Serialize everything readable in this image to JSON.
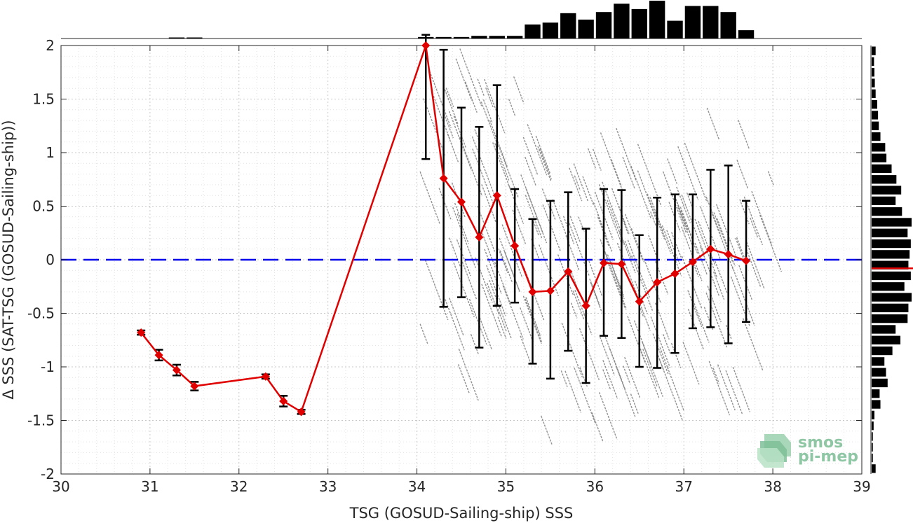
{
  "chart_data": {
    "type": "scatter",
    "xlabel": "TSG (GOSUD-Sailing-ship) SSS",
    "ylabel": "Δ SSS (SAT-TSG (GOSUD-Sailing-ship))",
    "xlim": [
      30,
      39
    ],
    "ylim": [
      -2,
      2
    ],
    "xticks": [
      "30",
      "31",
      "32",
      "33",
      "34",
      "35",
      "36",
      "37",
      "38",
      "39"
    ],
    "yticks": [
      "-2",
      "-1.5",
      "-1",
      "-0.5",
      "0",
      "0.5",
      "1",
      "1.5",
      "2"
    ],
    "grid": true,
    "zero_line": {
      "y": 0,
      "color": "#0000ee",
      "style": "dashed"
    },
    "mean_series": {
      "color": "#e00000",
      "marker": "diamond",
      "points": [
        {
          "x": 30.9,
          "y": -0.68,
          "lo": -0.7,
          "hi": -0.66
        },
        {
          "x": 31.1,
          "y": -0.89,
          "lo": -0.94,
          "hi": -0.84
        },
        {
          "x": 31.3,
          "y": -1.03,
          "lo": -1.08,
          "hi": -0.98
        },
        {
          "x": 31.5,
          "y": -1.18,
          "lo": -1.22,
          "hi": -1.14
        },
        {
          "x": 32.3,
          "y": -1.09,
          "lo": -1.11,
          "hi": -1.07
        },
        {
          "x": 32.5,
          "y": -1.32,
          "lo": -1.37,
          "hi": -1.27
        },
        {
          "x": 32.7,
          "y": -1.42,
          "lo": -1.44,
          "hi": -1.4
        },
        {
          "x": 34.1,
          "y": 2.05,
          "lo": 0.94,
          "hi": 2.1
        },
        {
          "x": 34.3,
          "y": 0.76,
          "lo": -0.44,
          "hi": 1.96
        },
        {
          "x": 34.5,
          "y": 0.54,
          "lo": -0.35,
          "hi": 1.42
        },
        {
          "x": 34.7,
          "y": 0.21,
          "lo": -0.82,
          "hi": 1.24
        },
        {
          "x": 34.9,
          "y": 0.6,
          "lo": -0.43,
          "hi": 1.63
        },
        {
          "x": 35.1,
          "y": 0.13,
          "lo": -0.4,
          "hi": 0.66
        },
        {
          "x": 35.3,
          "y": -0.3,
          "lo": -0.97,
          "hi": 0.38
        },
        {
          "x": 35.5,
          "y": -0.29,
          "lo": -1.11,
          "hi": 0.55
        },
        {
          "x": 35.7,
          "y": -0.11,
          "lo": -0.85,
          "hi": 0.63
        },
        {
          "x": 35.9,
          "y": -0.43,
          "lo": -1.15,
          "hi": 0.29
        },
        {
          "x": 36.1,
          "y": -0.03,
          "lo": -0.71,
          "hi": 0.66
        },
        {
          "x": 36.3,
          "y": -0.04,
          "lo": -0.73,
          "hi": 0.65
        },
        {
          "x": 36.5,
          "y": -0.39,
          "lo": -1.0,
          "hi": 0.23
        },
        {
          "x": 36.7,
          "y": -0.21,
          "lo": -1.01,
          "hi": 0.58
        },
        {
          "x": 36.9,
          "y": -0.13,
          "lo": -0.87,
          "hi": 0.61
        },
        {
          "x": 37.1,
          "y": -0.02,
          "lo": -0.64,
          "hi": 0.61
        },
        {
          "x": 37.3,
          "y": 0.1,
          "lo": -0.63,
          "hi": 0.84
        },
        {
          "x": 37.5,
          "y": 0.05,
          "lo": -0.78,
          "hi": 0.88
        },
        {
          "x": 37.7,
          "y": -0.01,
          "lo": -0.58,
          "hi": 0.55
        }
      ]
    },
    "scatter_color": "#808080",
    "top_histogram": {
      "bin_centers": [
        30.9,
        31.1,
        31.3,
        31.5,
        31.7,
        31.9,
        32.1,
        32.3,
        32.5,
        32.7,
        32.9,
        33.1,
        33.3,
        33.5,
        33.7,
        33.9,
        34.1,
        34.3,
        34.5,
        34.7,
        34.9,
        35.1,
        35.3,
        35.5,
        35.7,
        35.9,
        36.1,
        36.3,
        36.5,
        36.7,
        36.9,
        37.1,
        37.3,
        37.5,
        37.7
      ],
      "counts": [
        0,
        0,
        0.02,
        0.02,
        0,
        0,
        0,
        0,
        0,
        0,
        0,
        0,
        0,
        0,
        0,
        0,
        0.04,
        0.04,
        0.04,
        0.07,
        0.07,
        0.07,
        0.37,
        0.42,
        0.67,
        0.5,
        0.7,
        0.92,
        0.78,
        1.0,
        0.47,
        0.86,
        0.86,
        0.7,
        0.22
      ]
    },
    "right_histogram": {
      "bin_centers": [
        1.95,
        1.85,
        1.75,
        1.65,
        1.55,
        1.45,
        1.35,
        1.25,
        1.15,
        1.05,
        0.95,
        0.85,
        0.75,
        0.65,
        0.55,
        0.45,
        0.35,
        0.25,
        0.15,
        0.05,
        -0.05,
        -0.15,
        -0.25,
        -0.35,
        -0.45,
        -0.55,
        -0.65,
        -0.75,
        -0.85,
        -0.95,
        -1.05,
        -1.15,
        -1.25,
        -1.35,
        -1.45,
        -1.55,
        -1.65,
        -1.75,
        -1.85,
        -1.95
      ],
      "counts": [
        0.1,
        0.06,
        0.07,
        0.08,
        0.1,
        0.14,
        0.16,
        0.18,
        0.22,
        0.34,
        0.37,
        0.5,
        0.62,
        0.74,
        0.6,
        0.76,
        1.0,
        0.9,
        0.98,
        0.95,
        0.92,
        0.98,
        0.82,
        1.0,
        0.92,
        0.9,
        0.6,
        0.72,
        0.52,
        0.32,
        0.36,
        0.4,
        0.2,
        0.22,
        0.07,
        0.05,
        0.03,
        0.03,
        0.03,
        0.1
      ]
    },
    "right_histogram_mean": -0.08,
    "logo": {
      "line1": "smos",
      "line2": "pi-mep",
      "color": "#8fc7a4"
    }
  }
}
